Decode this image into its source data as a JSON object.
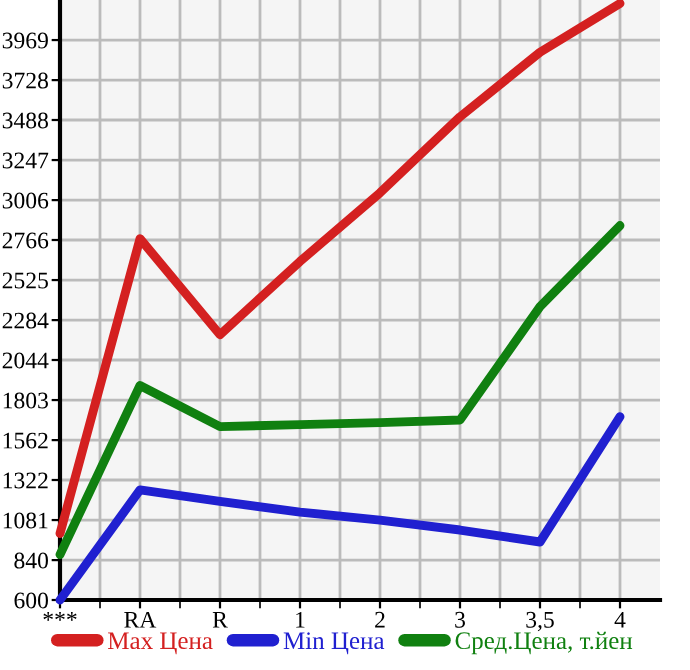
{
  "chart_data": {
    "type": "line",
    "categories": [
      "***",
      "RA",
      "R",
      "1",
      "2",
      "3",
      "3,5",
      "4"
    ],
    "series": [
      {
        "name": "Max Цена",
        "color": "#d42020",
        "values": [
          1000,
          2774,
          2196,
          2637,
          3050,
          3507,
          3896,
          4189
        ]
      },
      {
        "name": "Min Цена",
        "color": "#2020d0",
        "values": [
          600,
          1262,
          1193,
          1129,
          1081,
          1021,
          949,
          1703
        ]
      },
      {
        "name": "Сред.Цена, т.йен",
        "color": "#108010",
        "values": [
          873,
          1891,
          1643,
          1655,
          1667,
          1683,
          2365,
          2853
        ]
      }
    ],
    "ylim": [
      600,
      4210
    ],
    "yticks": [
      600,
      840,
      1081,
      1322,
      1562,
      1803,
      2044,
      2284,
      2525,
      2766,
      3006,
      3247,
      3488,
      3728,
      3969
    ],
    "grid": true,
    "legend": "bottom",
    "marker": "none",
    "line_style": "solid"
  }
}
